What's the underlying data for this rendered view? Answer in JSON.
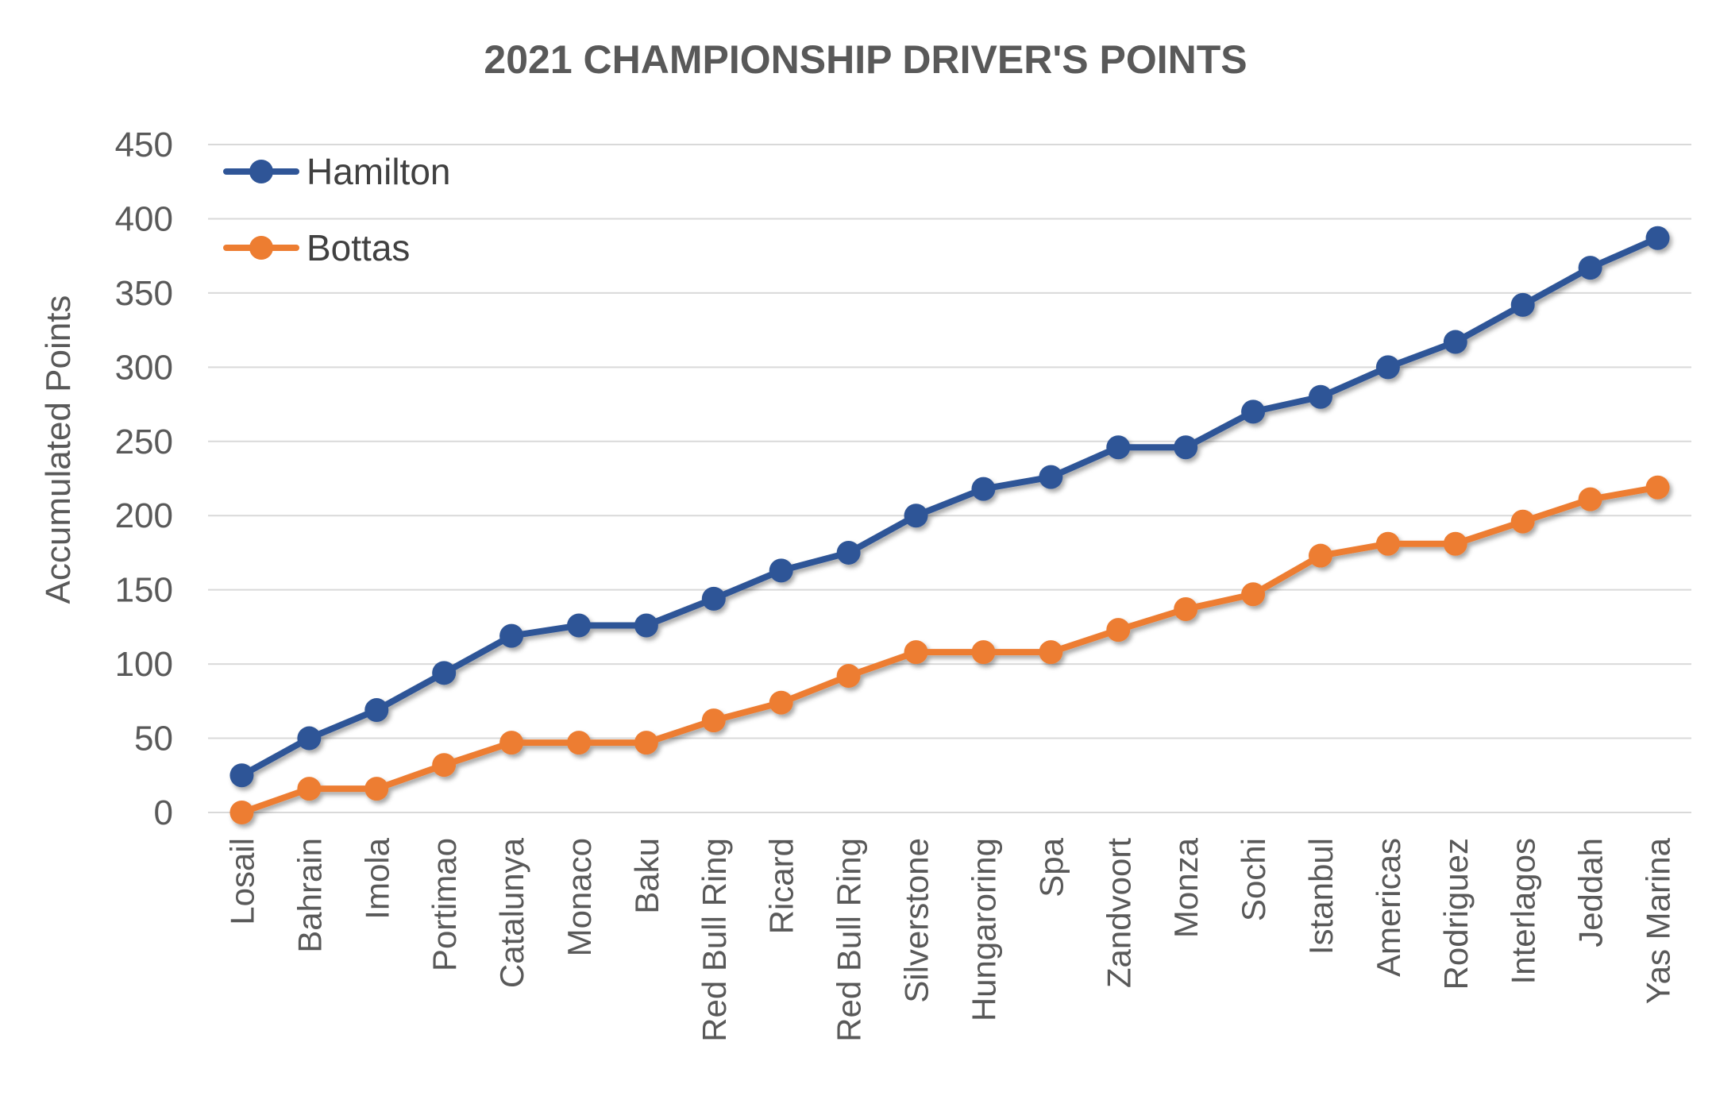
{
  "chart_data": {
    "type": "line",
    "title": "2021 CHAMPIONSHIP DRIVER'S POINTS",
    "xlabel": "",
    "ylabel": "Accumulated Points",
    "ylim": [
      0,
      450
    ],
    "yticks": [
      0,
      50,
      100,
      150,
      200,
      250,
      300,
      350,
      400,
      450
    ],
    "grid": true,
    "legend": "top-left",
    "categories": [
      "Losail",
      "Bahrain",
      "Imola",
      "Portimao",
      "Catalunya",
      "Monaco",
      "Baku",
      "Red Bull Ring",
      "Ricard",
      "Red Bull Ring",
      "Silverstone",
      "Hungaroring",
      "Spa",
      "Zandvoort",
      "Monza",
      "Sochi",
      "Istanbul",
      "Americas",
      "Rodriguez",
      "Interlagos",
      "Jeddah",
      "Yas Marina"
    ],
    "series": [
      {
        "name": "Hamilton",
        "color": "#2F5597",
        "values": [
          25,
          50,
          69,
          94,
          119,
          126,
          126,
          144,
          163,
          175,
          200,
          218,
          226,
          246,
          246,
          270,
          280,
          300,
          317,
          342,
          367,
          387
        ]
      },
      {
        "name": "Bottas",
        "color": "#ED7D31",
        "values": [
          0,
          16,
          16,
          32,
          47,
          47,
          47,
          62,
          74,
          92,
          108,
          108,
          108,
          123,
          137,
          147,
          173,
          181,
          181,
          196,
          211,
          219
        ]
      }
    ]
  }
}
